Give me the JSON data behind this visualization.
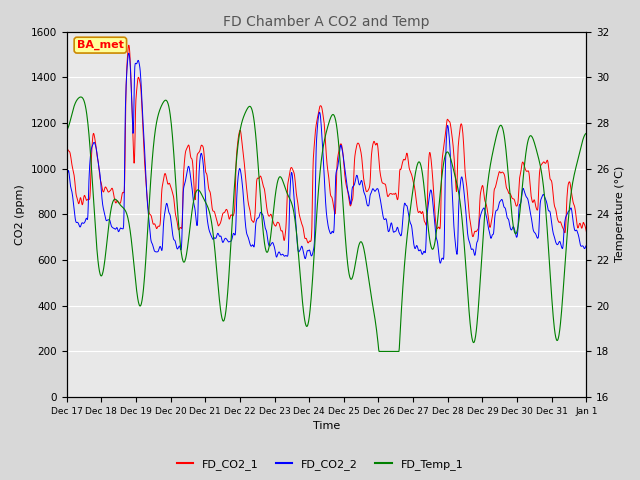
{
  "title": "FD Chamber A CO2 and Temp",
  "xlabel": "Time",
  "ylabel_left": "CO2 (ppm)",
  "ylabel_right": "Temperature (°C)",
  "ylim_left": [
    0,
    1600
  ],
  "ylim_right": [
    16,
    32
  ],
  "legend_labels": [
    "FD_CO2_1",
    "FD_CO2_2",
    "FD_Temp_1"
  ],
  "legend_colors": [
    "red",
    "blue",
    "green"
  ],
  "annotation_text": "BA_met",
  "annotation_bg": "#ffff99",
  "annotation_border": "#cc8800",
  "background_color": "#d8d8d8",
  "plot_bg_color": "#e8e8e8",
  "xtick_labels": [
    "Dec 17",
    "Dec 18",
    "Dec 19",
    "Dec 20",
    "Dec 21",
    "Dec 22",
    "Dec 23",
    "Dec 24",
    "Dec 25",
    "Dec 26",
    "Dec 27",
    "Dec 28",
    "Dec 29",
    "Dec 30",
    "Dec 31",
    "Jan 1"
  ],
  "n_points": 1440
}
